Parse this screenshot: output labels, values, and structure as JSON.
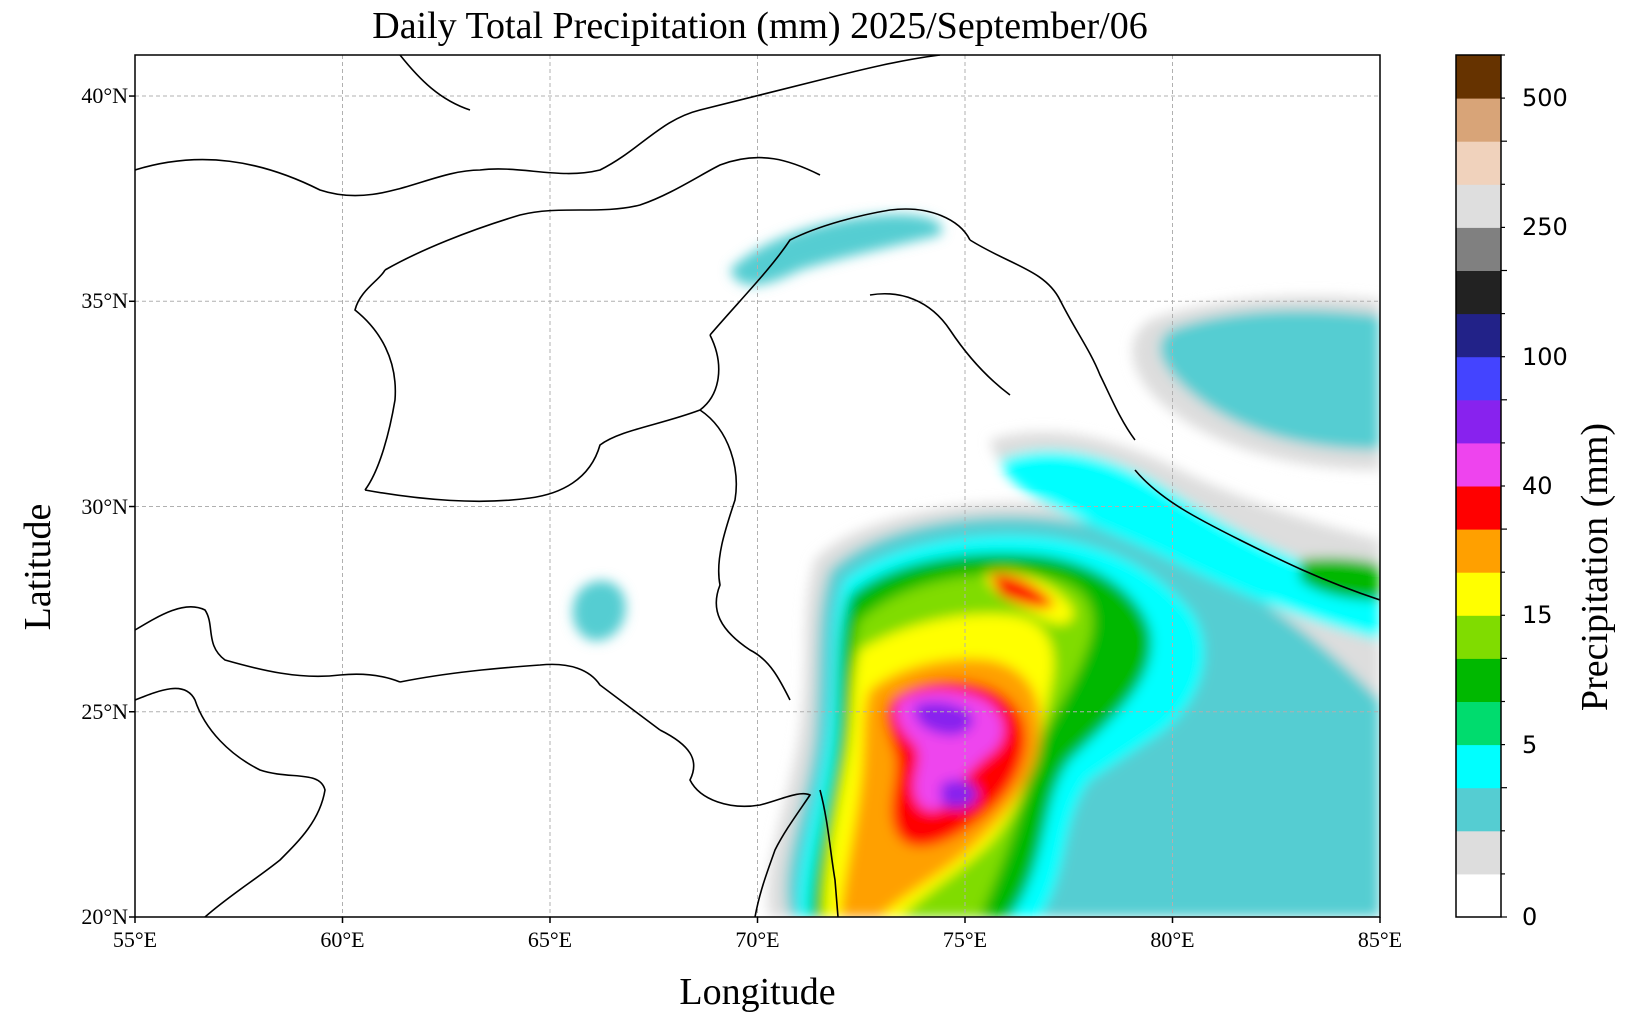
{
  "title": "Daily Total Precipitation (mm)  2025/September/06",
  "xlabel": "Longitude",
  "ylabel": "Latitude",
  "colorbar": {
    "label": "Precipitation (mm)",
    "tick_labels": [
      "0",
      "5",
      "15",
      "40",
      "100",
      "250",
      "500"
    ],
    "levels": [
      0,
      1,
      2,
      3,
      5,
      8,
      10,
      15,
      20,
      30,
      40,
      50,
      70,
      100,
      150,
      200,
      250,
      300,
      400,
      500,
      700
    ],
    "colors": [
      "#ffffff",
      "#dddddd",
      "#55cdd2",
      "#00ffff",
      "#00dc6e",
      "#00b800",
      "#80dc00",
      "#ffff00",
      "#ffa000",
      "#ff0000",
      "#ee44ee",
      "#8822ee",
      "#4444ff",
      "#222288",
      "#222222",
      "#808080",
      "#dedede",
      "#f0d2bc",
      "#d8a478",
      "#663300"
    ]
  },
  "map": {
    "lon_range": [
      55,
      85
    ],
    "lat_range": [
      20,
      41
    ],
    "xtick_values": [
      55,
      60,
      65,
      70,
      75,
      80,
      85
    ],
    "ytick_values": [
      20,
      25,
      30,
      35,
      40
    ],
    "xtick_labels": [
      "55°E",
      "60°E",
      "65°E",
      "70°E",
      "75°E",
      "80°E",
      "85°E"
    ],
    "ytick_labels": [
      "20°N",
      "25°N",
      "30°N",
      "35°N",
      "40°N"
    ],
    "gridlines": true
  }
}
